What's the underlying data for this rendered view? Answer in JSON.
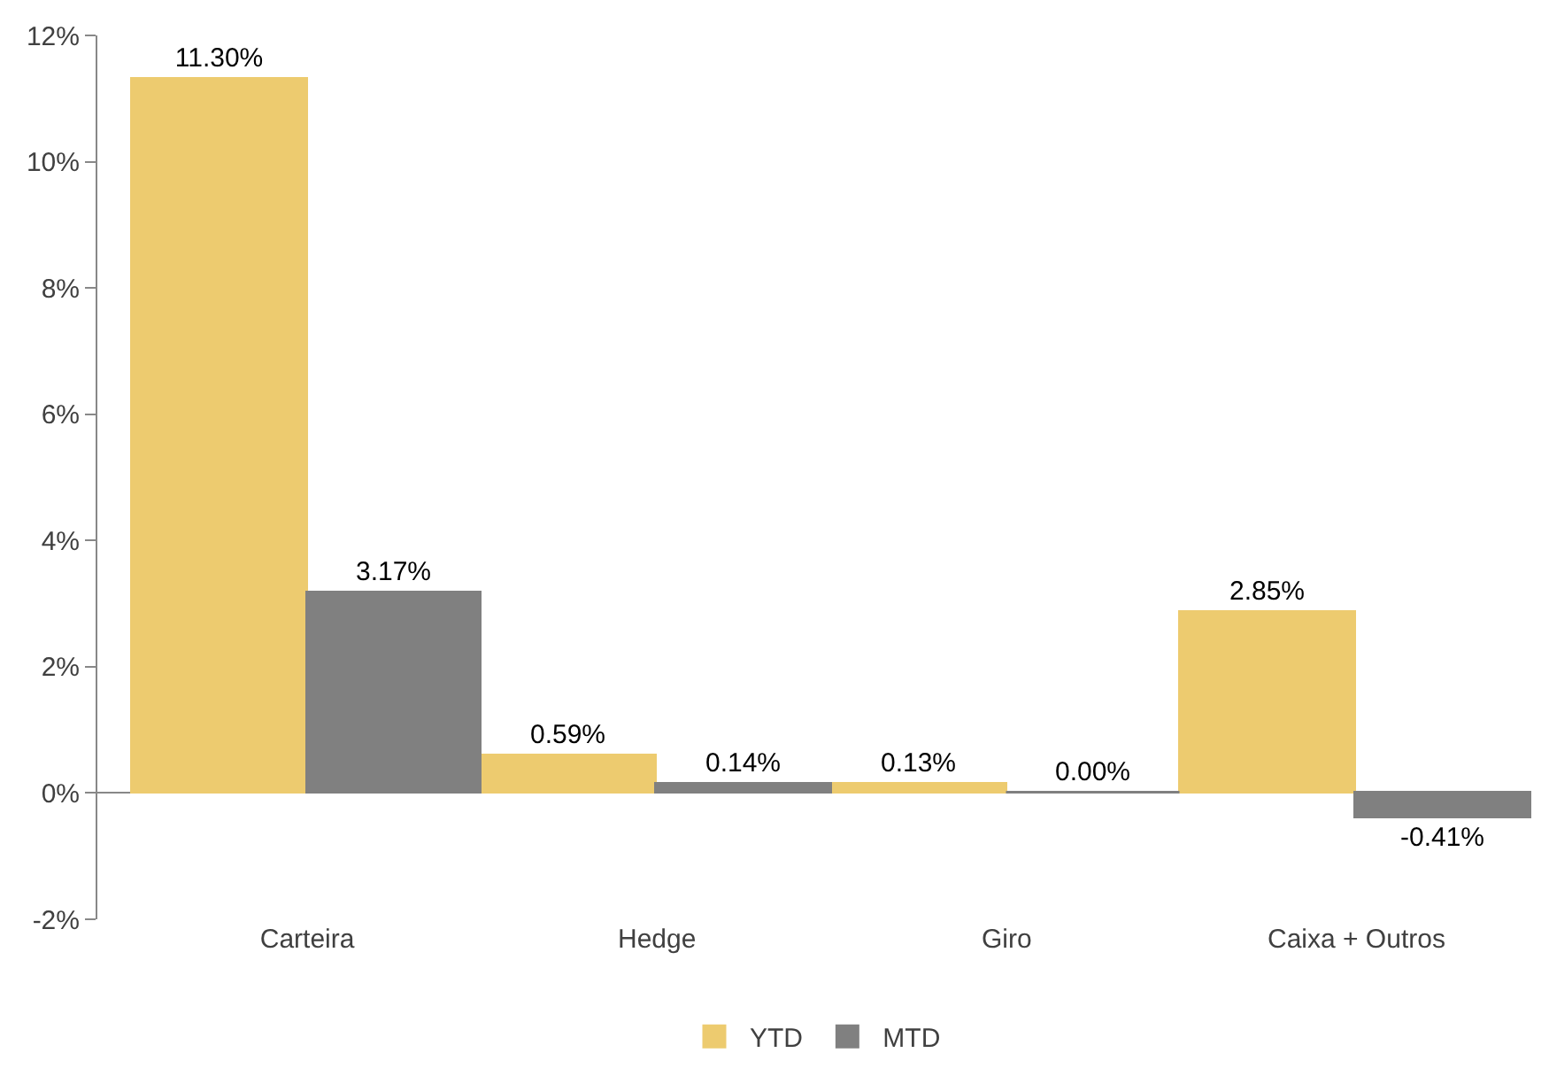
{
  "chart_data": {
    "type": "bar",
    "categories": [
      "Carteira",
      "Hedge",
      "Giro",
      "Caixa + Outros"
    ],
    "series": [
      {
        "name": "YTD",
        "color": "#edcb6f",
        "values": [
          11.3,
          0.59,
          0.13,
          2.85
        ],
        "value_labels": [
          "11.30%",
          "0.59%",
          "0.13%",
          "2.85%"
        ]
      },
      {
        "name": "MTD",
        "color": "#808080",
        "values": [
          3.17,
          0.14,
          0,
          -0.41
        ],
        "value_labels": [
          "3.17%",
          "0.14%",
          "0.00%",
          "-0.41%"
        ]
      }
    ],
    "ylim": [
      -2,
      12
    ],
    "yticks": [
      {
        "value": -2,
        "label": "-2%"
      },
      {
        "value": 0,
        "label": "0%"
      },
      {
        "value": 2,
        "label": "2%"
      },
      {
        "value": 4,
        "label": "4%"
      },
      {
        "value": 6,
        "label": "6%"
      },
      {
        "value": 8,
        "label": "8%"
      },
      {
        "value": 10,
        "label": "10%"
      },
      {
        "value": 12,
        "label": "12%"
      }
    ],
    "legend": "bottom"
  }
}
